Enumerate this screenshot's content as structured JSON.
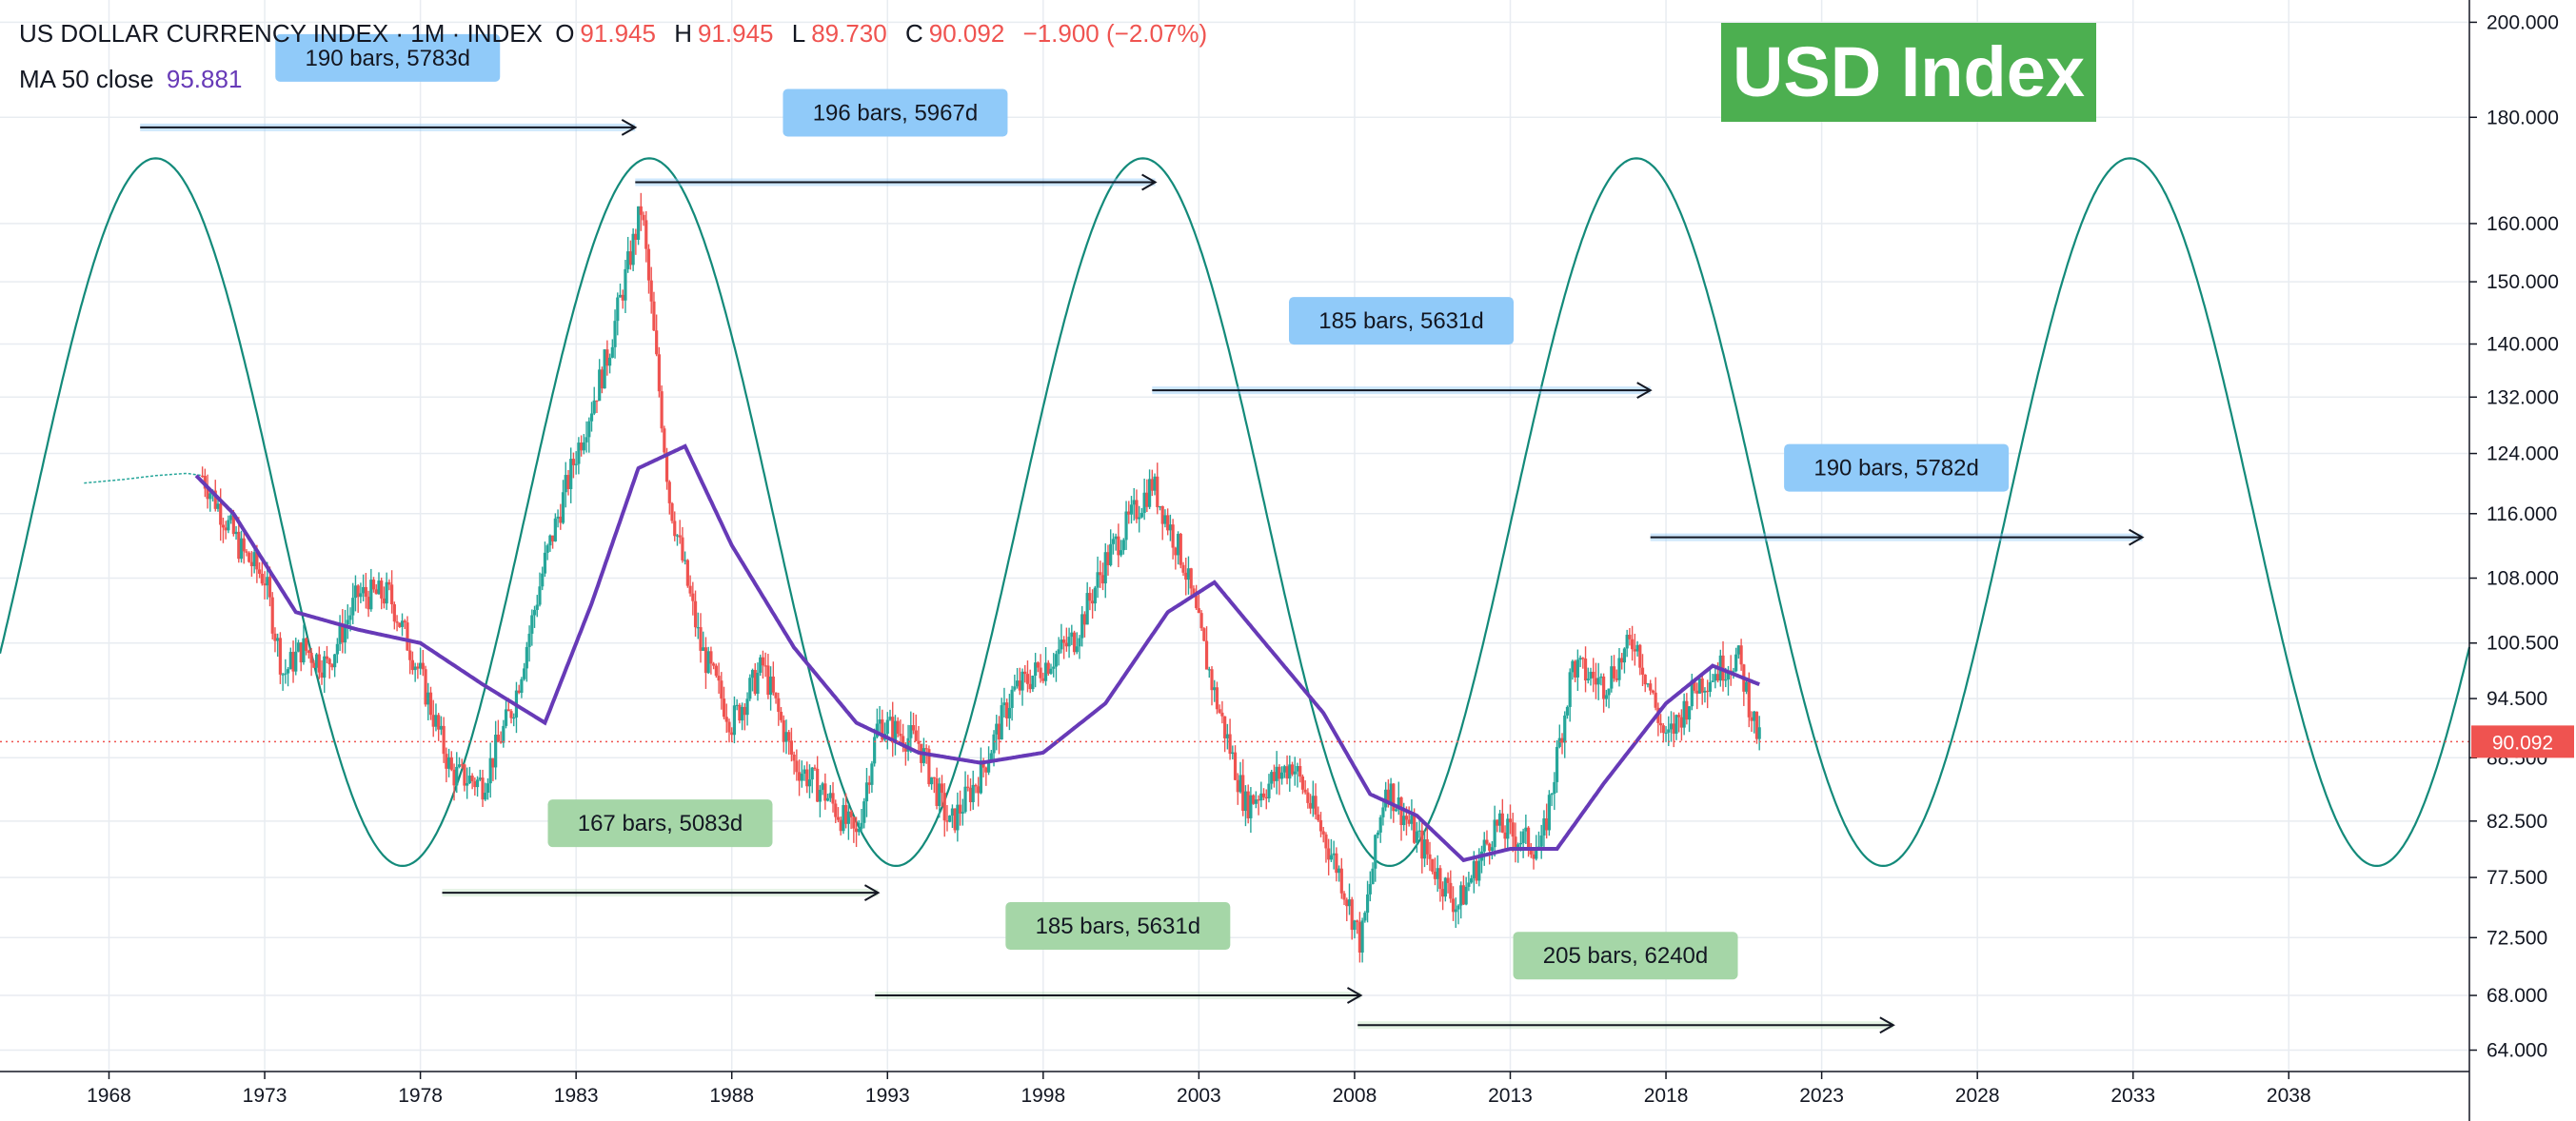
{
  "header": {
    "symbol": "US DOLLAR CURRENCY INDEX · 1M · INDEX",
    "ohlc": [
      {
        "key": "O",
        "value": "91.945"
      },
      {
        "key": "H",
        "value": "91.945"
      },
      {
        "key": "L",
        "value": "89.730"
      },
      {
        "key": "C",
        "value": "90.092"
      }
    ],
    "change": "−1.900 (−2.07%)",
    "ma_label": "MA 50 close",
    "ma_value": "95.881"
  },
  "badge": "USD Index",
  "price_tag": "90.092",
  "colors": {
    "up": "#26a69a",
    "down": "#ef5350",
    "ma": "#673ab7",
    "cycle": "#138a7a",
    "blue_label": "#90caf9",
    "green_label": "#a5d6a7",
    "badge": "#4caf50",
    "grid": "#e8ecf1",
    "price_line": "#ef5350"
  },
  "chart_data": {
    "type": "candlestick",
    "title": "USD Index",
    "x_axis": {
      "type": "date",
      "range": [
        1964.5,
        2043.8
      ],
      "ticks": [
        "1968",
        "1973",
        "1978",
        "1983",
        "1988",
        "1993",
        "1998",
        "2003",
        "2008",
        "2013",
        "2018",
        "2023",
        "2028",
        "2033",
        "2038"
      ]
    },
    "y_axis": {
      "scale": "log",
      "range": [
        62.5,
        205
      ],
      "ticks": [
        "200.000",
        "180.000",
        "160.000",
        "150.000",
        "140.000",
        "132.000",
        "124.000",
        "116.000",
        "108.000",
        "100.500",
        "94.500",
        "88.500",
        "82.500",
        "77.500",
        "72.500",
        "68.000",
        "64.000"
      ]
    },
    "grid": true,
    "last_price": 90.092,
    "price_anchors": [
      [
        1971.0,
        121.0
      ],
      [
        1972.3,
        111.0
      ],
      [
        1973.0,
        108.0
      ],
      [
        1973.6,
        97.0
      ],
      [
        1974.2,
        100.0
      ],
      [
        1975.0,
        98.0
      ],
      [
        1976.0,
        106.0
      ],
      [
        1977.0,
        106.0
      ],
      [
        1978.0,
        97.0
      ],
      [
        1979.0,
        87.0
      ],
      [
        1980.0,
        86.0
      ],
      [
        1981.0,
        94.0
      ],
      [
        1982.0,
        110.0
      ],
      [
        1983.0,
        124.0
      ],
      [
        1984.0,
        138.0
      ],
      [
        1985.1,
        163.0
      ],
      [
        1986.0,
        118.0
      ],
      [
        1987.0,
        100.0
      ],
      [
        1988.0,
        92.0
      ],
      [
        1989.0,
        98.0
      ],
      [
        1990.0,
        88.0
      ],
      [
        1991.0,
        85.0
      ],
      [
        1992.0,
        81.0
      ],
      [
        1992.7,
        92.0
      ],
      [
        1994.0,
        90.0
      ],
      [
        1995.0,
        82.0
      ],
      [
        1996.0,
        87.0
      ],
      [
        1997.0,
        95.0
      ],
      [
        1998.0,
        98.0
      ],
      [
        1999.0,
        101.0
      ],
      [
        2000.0,
        110.0
      ],
      [
        2001.5,
        120.0
      ],
      [
        2002.5,
        110.0
      ],
      [
        2003.5,
        95.0
      ],
      [
        2004.5,
        84.0
      ],
      [
        2006.0,
        88.0
      ],
      [
        2007.5,
        78.0
      ],
      [
        2008.2,
        72.0
      ],
      [
        2009.0,
        86.0
      ],
      [
        2010.0,
        81.0
      ],
      [
        2011.3,
        75.0
      ],
      [
        2012.5,
        82.0
      ],
      [
        2014.0,
        80.0
      ],
      [
        2015.0,
        98.0
      ],
      [
        2016.0,
        96.0
      ],
      [
        2017.0,
        101.0
      ],
      [
        2018.0,
        90.0
      ],
      [
        2019.0,
        96.0
      ],
      [
        2020.3,
        99.0
      ],
      [
        2021.0,
        90.0
      ]
    ],
    "ma50_anchors": [
      [
        1970.8,
        121.0
      ],
      [
        1972.0,
        116.0
      ],
      [
        1974.0,
        104.0
      ],
      [
        1976.0,
        102.0
      ],
      [
        1978.0,
        100.5
      ],
      [
        1980.0,
        96.0
      ],
      [
        1982.0,
        92.0
      ],
      [
        1983.5,
        105.0
      ],
      [
        1985.0,
        122.0
      ],
      [
        1986.5,
        125.0
      ],
      [
        1988.0,
        112.0
      ],
      [
        1990.0,
        100.0
      ],
      [
        1992.0,
        92.0
      ],
      [
        1994.0,
        89.0
      ],
      [
        1996.0,
        88.0
      ],
      [
        1998.0,
        89.0
      ],
      [
        2000.0,
        94.0
      ],
      [
        2002.0,
        104.0
      ],
      [
        2003.5,
        107.5
      ],
      [
        2005.0,
        101.0
      ],
      [
        2007.0,
        93.0
      ],
      [
        2008.5,
        85.0
      ],
      [
        2010.0,
        83.0
      ],
      [
        2011.5,
        79.0
      ],
      [
        2013.0,
        80.0
      ],
      [
        2014.5,
        80.0
      ],
      [
        2016.0,
        86.0
      ],
      [
        2018.0,
        94.0
      ],
      [
        2019.5,
        98.0
      ],
      [
        2021.0,
        96.0
      ]
    ],
    "cycle_wave": {
      "period_years": 15.85,
      "peak_year": 1969.5,
      "peak_value": 172.0,
      "trough_value": 78.5
    },
    "ranges": [
      {
        "label": "190 bars, 5783d",
        "start": 1969.0,
        "end": 1984.9,
        "value": 178.0,
        "color": "blue"
      },
      {
        "label": "196 bars, 5967d",
        "start": 1984.9,
        "end": 2001.6,
        "value": 167.5,
        "color": "blue"
      },
      {
        "label": "185 bars, 5631d",
        "start": 2001.5,
        "end": 2017.5,
        "value": 133.0,
        "color": "blue"
      },
      {
        "label": "190 bars, 5782d",
        "start": 2017.5,
        "end": 2033.3,
        "value": 113.0,
        "color": "blue"
      },
      {
        "label": "167 bars, 5083d",
        "start": 1978.7,
        "end": 1992.7,
        "value": 76.2,
        "color": "green"
      },
      {
        "label": "185 bars, 5631d",
        "start": 1992.6,
        "end": 2008.2,
        "value": 68.0,
        "color": "green"
      },
      {
        "label": "205 bars, 6240d",
        "start": 2008.1,
        "end": 2025.3,
        "value": 65.8,
        "color": "green"
      }
    ]
  }
}
